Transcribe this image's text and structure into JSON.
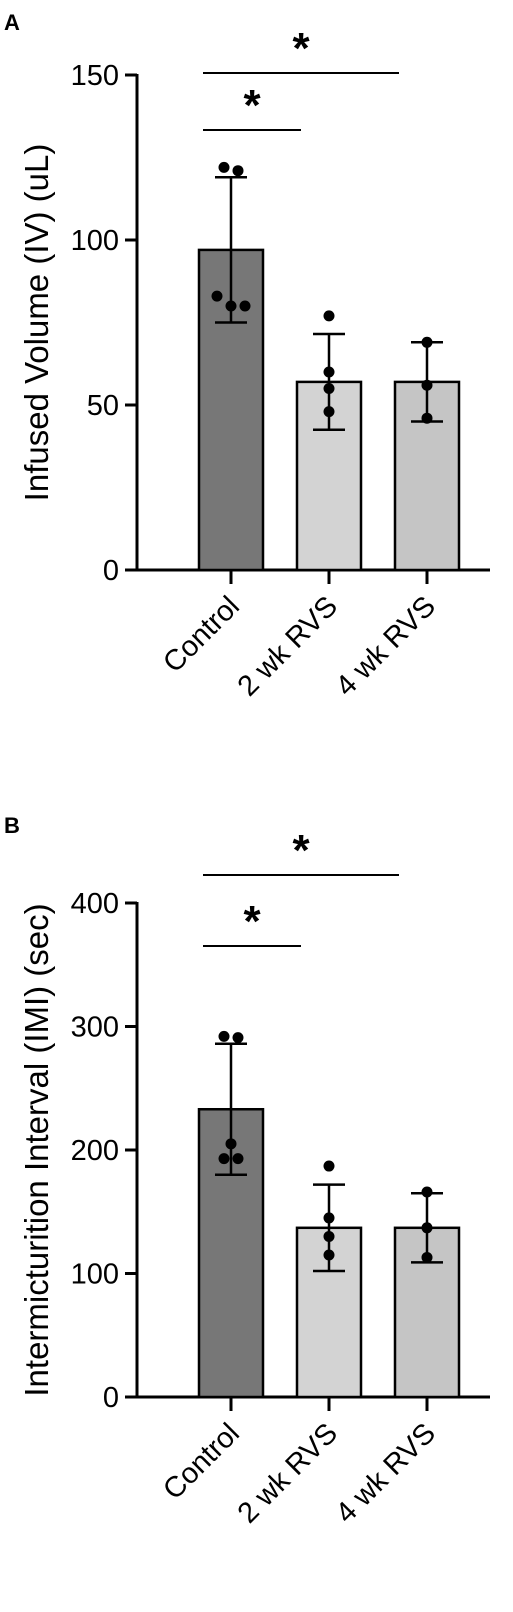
{
  "chart_data": [
    {
      "type": "bar",
      "panel": "A",
      "categories": [
        "Control",
        "2 wk RVS",
        "4 wk RVS"
      ],
      "values": [
        97,
        57,
        57
      ],
      "error": [
        22,
        14.5,
        12
      ],
      "points": [
        [
          122,
          121,
          83,
          80,
          80
        ],
        [
          77,
          60,
          55,
          48
        ],
        [
          69,
          56,
          46
        ]
      ],
      "bar_colors": [
        "#777777",
        "#d3d3d3",
        "#c5c5c5"
      ],
      "title": "",
      "xlabel": "",
      "ylabel": "Infused Volume (IV) (uL)",
      "ylim": [
        0,
        150
      ],
      "yticks": [
        0,
        50,
        100,
        150
      ],
      "significance": [
        {
          "from": 0,
          "to": 1,
          "label": "*"
        },
        {
          "from": 0,
          "to": 2,
          "label": "*"
        }
      ]
    },
    {
      "type": "bar",
      "panel": "B",
      "categories": [
        "Control",
        "2 wk RVS",
        "4 wk RVS"
      ],
      "values": [
        233,
        137,
        137
      ],
      "error": [
        53,
        35,
        28
      ],
      "points": [
        [
          292,
          291,
          205,
          193,
          193
        ],
        [
          187,
          145,
          130,
          115
        ],
        [
          166,
          137,
          113
        ]
      ],
      "bar_colors": [
        "#777777",
        "#d3d3d3",
        "#c5c5c5"
      ],
      "title": "",
      "xlabel": "",
      "ylabel": "Intermicturition Interval (IMI) (sec)",
      "ylim": [
        0,
        400
      ],
      "yticks": [
        0,
        100,
        200,
        300,
        400
      ],
      "significance": [
        {
          "from": 0,
          "to": 1,
          "label": "*"
        },
        {
          "from": 0,
          "to": 2,
          "label": "*"
        }
      ]
    }
  ]
}
